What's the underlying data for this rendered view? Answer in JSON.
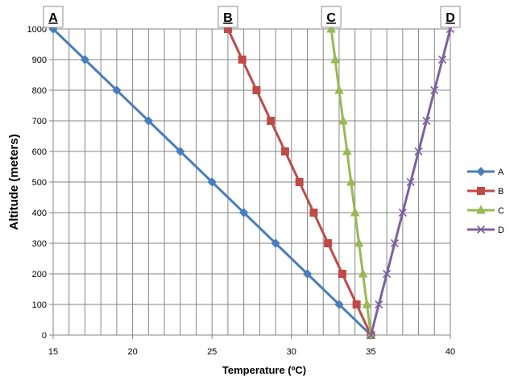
{
  "chart_data": {
    "type": "line",
    "xlabel": "Temperature (ºC)",
    "ylabel": "Altitude (meters)",
    "xlim": [
      15,
      40
    ],
    "ylim": [
      0,
      1000
    ],
    "x_ticks": [
      "15",
      "20",
      "25",
      "30",
      "35",
      "40"
    ],
    "y_ticks": [
      "0",
      "100",
      "200",
      "300",
      "400",
      "500",
      "600",
      "700",
      "800",
      "900",
      "1000"
    ],
    "grid": "major vertical and horizontal gridlines",
    "legend_position": "right",
    "series": [
      {
        "name": "A",
        "color": "#4a7ebb",
        "marker": "diamond",
        "points": [
          [
            35,
            0
          ],
          [
            33,
            100
          ],
          [
            31,
            200
          ],
          [
            29,
            300
          ],
          [
            27,
            400
          ],
          [
            25,
            500
          ],
          [
            23,
            600
          ],
          [
            21,
            700
          ],
          [
            19,
            800
          ],
          [
            17,
            900
          ],
          [
            15,
            1000
          ]
        ]
      },
      {
        "name": "B",
        "color": "#be4b48",
        "marker": "square",
        "points": [
          [
            35,
            0
          ],
          [
            34.1,
            100
          ],
          [
            33.2,
            200
          ],
          [
            32.3,
            300
          ],
          [
            31.4,
            400
          ],
          [
            30.5,
            500
          ],
          [
            29.6,
            600
          ],
          [
            28.7,
            700
          ],
          [
            27.8,
            800
          ],
          [
            26.9,
            900
          ],
          [
            26,
            1000
          ]
        ]
      },
      {
        "name": "C",
        "color": "#98b954",
        "marker": "triangle",
        "points": [
          [
            35,
            0
          ],
          [
            34.75,
            100
          ],
          [
            34.5,
            200
          ],
          [
            34.25,
            300
          ],
          [
            34,
            400
          ],
          [
            33.75,
            500
          ],
          [
            33.5,
            600
          ],
          [
            33.25,
            700
          ],
          [
            33,
            800
          ],
          [
            32.75,
            900
          ],
          [
            32.5,
            1000
          ]
        ]
      },
      {
        "name": "D",
        "color": "#7d60a0",
        "marker": "x",
        "points": [
          [
            35,
            0
          ],
          [
            35.5,
            100
          ],
          [
            36,
            200
          ],
          [
            36.5,
            300
          ],
          [
            37,
            400
          ],
          [
            37.5,
            500
          ],
          [
            38,
            600
          ],
          [
            38.5,
            700
          ],
          [
            39,
            800
          ],
          [
            39.5,
            900
          ],
          [
            40,
            1000
          ]
        ]
      }
    ],
    "callouts": [
      {
        "label": "A",
        "x": 15
      },
      {
        "label": "B",
        "x": 26
      },
      {
        "label": "C",
        "x": 32.5
      },
      {
        "label": "D",
        "x": 40
      }
    ]
  }
}
